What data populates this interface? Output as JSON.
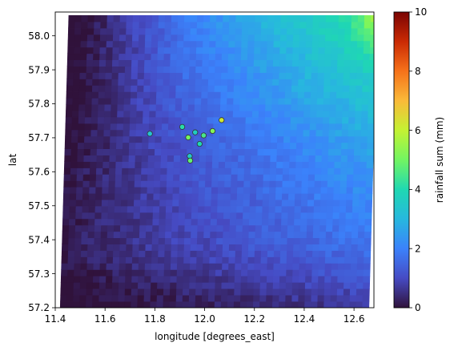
{
  "chart_data": {
    "type": "heatmap",
    "xlabel": "longitude [degrees_east]",
    "ylabel": "lat",
    "xlim": [
      11.4,
      12.68
    ],
    "ylim": [
      57.2,
      58.07
    ],
    "x_ticks": [
      11.4,
      11.6,
      11.8,
      12.0,
      12.2,
      12.4,
      12.6
    ],
    "x_tick_labels": [
      "11.4",
      "11.6",
      "11.8",
      "12.0",
      "12.2",
      "12.4",
      "12.6"
    ],
    "y_ticks": [
      57.2,
      57.3,
      57.4,
      57.5,
      57.6,
      57.7,
      57.8,
      57.9,
      58.0
    ],
    "y_tick_labels": [
      "57.2",
      "57.3",
      "57.4",
      "57.5",
      "57.6",
      "57.7",
      "57.8",
      "57.9",
      "58.0"
    ],
    "grid": false,
    "colormap": "turbo",
    "colorbar": {
      "label": "rainfall sum (mm)",
      "range": [
        0,
        10
      ],
      "ticks": [
        0,
        2,
        4,
        6,
        8,
        10
      ],
      "tick_labels": [
        "0",
        "2",
        "4",
        "6",
        "8",
        "10"
      ]
    },
    "grid_extent": {
      "lon_min": 11.42,
      "lon_max": 12.66,
      "lat_min": 57.2,
      "lat_max": 58.06,
      "skew_lon_per_lat": 0.04
    },
    "stations": [
      {
        "lon": 11.78,
        "lat": 57.712,
        "value": 3.3
      },
      {
        "lon": 11.91,
        "lat": 57.732,
        "value": 4.1
      },
      {
        "lon": 11.934,
        "lat": 57.701,
        "value": 5.0
      },
      {
        "lon": 11.962,
        "lat": 57.716,
        "value": 3.7
      },
      {
        "lon": 11.996,
        "lat": 57.707,
        "value": 4.5
      },
      {
        "lon": 11.98,
        "lat": 57.682,
        "value": 4.0
      },
      {
        "lon": 12.032,
        "lat": 57.72,
        "value": 5.2
      },
      {
        "lon": 12.068,
        "lat": 57.752,
        "value": 6.2
      },
      {
        "lon": 11.94,
        "lat": 57.646,
        "value": 3.4
      },
      {
        "lon": 11.942,
        "lat": 57.633,
        "value": 4.8
      }
    ]
  }
}
